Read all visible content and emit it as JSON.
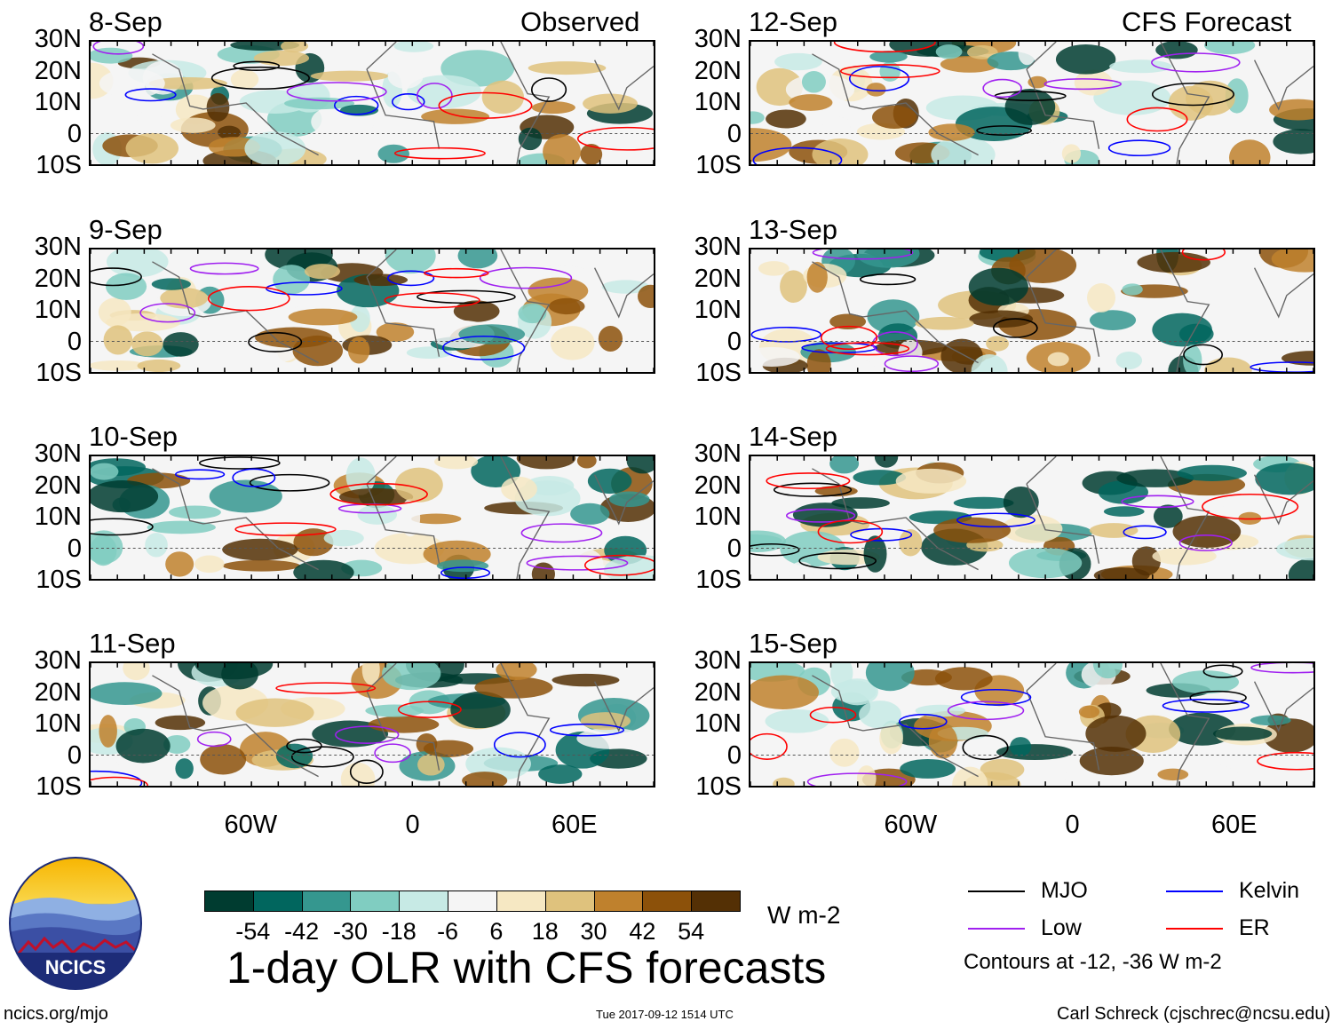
{
  "figure": {
    "title": "1-day OLR with CFS forecasts",
    "left_header": "Observed",
    "right_header": "CFS Forecast",
    "footer_left": "ncics.org/mjo",
    "footer_center": "Tue 2017-09-12 1514 UTC",
    "footer_right": "Carl Schreck (cjschrec@ncsu.edu)",
    "logo_text": "NCICS",
    "units": "W m-2",
    "contour_note": "Contours at -12, -36 W m-2"
  },
  "chart_data": {
    "type": "heatmap",
    "title": "1-day OLR with CFS forecasts",
    "lat_ticks": [
      "30N",
      "20N",
      "10N",
      "0",
      "10S"
    ],
    "lon_ticks": [
      "60W",
      "0",
      "60E"
    ],
    "lat_range": [
      -10,
      30
    ],
    "lon_range": [
      -120,
      90
    ],
    "observed_dates": [
      "8-Sep",
      "9-Sep",
      "10-Sep",
      "11-Sep"
    ],
    "forecast_dates": [
      "12-Sep",
      "13-Sep",
      "14-Sep",
      "15-Sep"
    ],
    "colorbar": {
      "unit": "W m-2",
      "labels": [
        "-54",
        "-42",
        "-30",
        "-18",
        "-6",
        "6",
        "18",
        "30",
        "42",
        "54"
      ],
      "colors": [
        "#003c30",
        "#01665e",
        "#35978f",
        "#80cdc1",
        "#c7eae5",
        "#f5f5f5",
        "#f6e8c3",
        "#dfc27d",
        "#bf812d",
        "#8c510a",
        "#543005"
      ]
    },
    "legend": [
      {
        "name": "MJO",
        "color": "#000000"
      },
      {
        "name": "Kelvin",
        "color": "#0000ff"
      },
      {
        "name": "Low",
        "color": "#a020f0"
      },
      {
        "name": "ER",
        "color": "#ff0000"
      }
    ],
    "contour_levels": [
      -12,
      -36
    ]
  }
}
